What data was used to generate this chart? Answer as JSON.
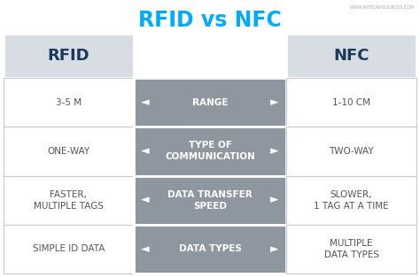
{
  "title_part1": "RFID",
  "title_vs": " vs ",
  "title_part2": "NFC",
  "title_color": "#00aaff",
  "title_vs_color": "#3399cc",
  "watermark": "WWW.INTEGRASOURCES.COM",
  "bg_color": "#ffffff",
  "header_bg": "#d8dde4",
  "center_bg": "#8e979f",
  "left_col_header": "RFID",
  "right_col_header": "NFC",
  "header_text_color": "#1a3a5c",
  "center_text_color": "#ffffff",
  "side_text_color": "#555555",
  "arrow_char_left": "◄",
  "arrow_char_right": "►",
  "row_line_color": "#c5c9ce",
  "rows": [
    {
      "center": "RANGE",
      "left": "3-5 M",
      "right": "1-10 CM"
    },
    {
      "center": "TYPE OF\nCOMMUNICATION",
      "left": "ONE-WAY",
      "right": "TWO-WAY"
    },
    {
      "center": "DATA TRANSFER\nSPEED",
      "left": "FASTER,\nMULTIPLE TAGS",
      "right": "SLOWER,\n1 TAG AT A TIME"
    },
    {
      "center": "DATA TYPES",
      "left": "SIMPLE ID DATA",
      "right": "MULTIPLE\nDATA TYPES"
    }
  ]
}
